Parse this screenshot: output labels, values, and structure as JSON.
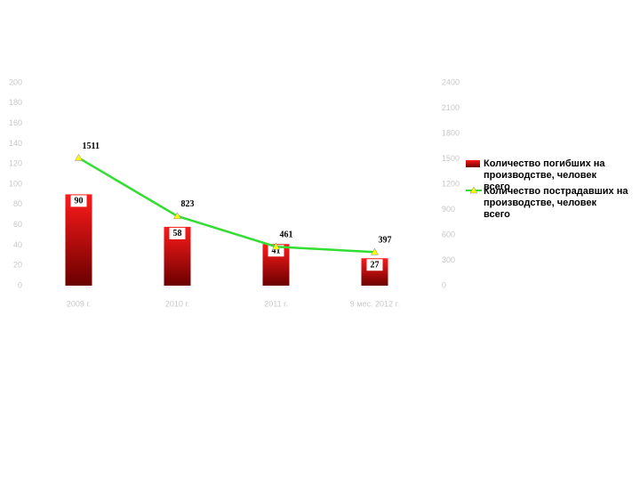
{
  "chart_data": {
    "type": "bar-line",
    "categories": [
      "2009 г.",
      "2010 г.",
      "2011 г.",
      "9 мес. 2012 г."
    ],
    "series": [
      {
        "name": "Количество погибших на производстве, человек всего",
        "color": "#d40000",
        "type": "bar",
        "values": [
          90,
          58,
          41,
          27
        ]
      },
      {
        "name": "Количество пострадавших на производстве, человек всего",
        "color": "#33dd33",
        "type": "line",
        "axis": "y2",
        "marker_color": "#ffff00",
        "values": [
          1511,
          823,
          461,
          397
        ]
      }
    ],
    "ylim": [
      0,
      200
    ],
    "yticks": [
      0,
      20,
      40,
      60,
      80,
      100,
      120,
      140,
      160,
      180,
      200
    ],
    "y2lim": [
      0,
      2400
    ],
    "y2ticks": [
      0,
      300,
      600,
      900,
      1200,
      1500,
      1800,
      2100,
      2400
    ],
    "legend": "right"
  }
}
